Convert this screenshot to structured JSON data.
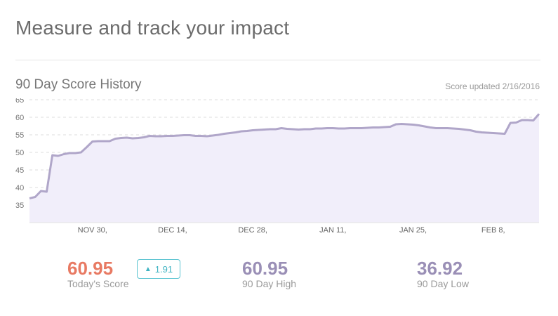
{
  "header": {
    "title": "Measure and track your impact"
  },
  "section": {
    "title": "90 Day Score History",
    "updated": "Score updated 2/16/2016"
  },
  "stats": {
    "today": {
      "value": "60.95",
      "label": "Today's Score"
    },
    "change": {
      "value": "1.91",
      "icon": "triangle-up-icon"
    },
    "high": {
      "value": "60.95",
      "label": "90 Day High"
    },
    "low": {
      "value": "36.92",
      "label": "90 Day Low"
    }
  },
  "colors": {
    "line": "#b0a6c9",
    "fill": "#f1eefa",
    "today": "#e87a63",
    "accent": "#9a8fb6",
    "badge": "#5bc4d1"
  },
  "chart_data": {
    "type": "area",
    "ylim": [
      30,
      65
    ],
    "yticks": [
      35,
      40,
      45,
      50,
      55,
      60,
      65
    ],
    "grid": true,
    "xtick_labels": [
      "NOV 30,",
      "DEC 14,",
      "DEC 28,",
      "JAN 11,",
      "JAN 25,",
      "FEB 8,"
    ],
    "xtick_days": [
      11,
      25,
      39,
      53,
      67,
      81
    ],
    "x_days": [
      0,
      1,
      2,
      3,
      4,
      5,
      6,
      7,
      8,
      9,
      10,
      11,
      12,
      13,
      14,
      15,
      16,
      17,
      18,
      19,
      20,
      21,
      22,
      23,
      24,
      25,
      26,
      27,
      28,
      29,
      30,
      31,
      32,
      33,
      34,
      35,
      36,
      37,
      38,
      39,
      40,
      41,
      42,
      43,
      44,
      45,
      46,
      47,
      48,
      49,
      50,
      51,
      52,
      53,
      54,
      55,
      56,
      57,
      58,
      59,
      60,
      61,
      62,
      63,
      64,
      65,
      66,
      67,
      68,
      69,
      70,
      71,
      72,
      73,
      74,
      75,
      76,
      77,
      78,
      79,
      80,
      81,
      82,
      83,
      84,
      85,
      86,
      87,
      88,
      89
    ],
    "values": [
      36.92,
      37.3,
      39.0,
      38.8,
      49.2,
      49.0,
      49.5,
      49.8,
      49.8,
      50.0,
      51.5,
      53.1,
      53.2,
      53.2,
      53.2,
      53.9,
      54.1,
      54.2,
      54.0,
      54.1,
      54.3,
      54.7,
      54.6,
      54.6,
      54.7,
      54.7,
      54.8,
      54.9,
      54.9,
      54.7,
      54.7,
      54.6,
      54.8,
      55.0,
      55.3,
      55.5,
      55.7,
      56.0,
      56.1,
      56.3,
      56.4,
      56.5,
      56.6,
      56.6,
      56.9,
      56.7,
      56.6,
      56.5,
      56.6,
      56.6,
      56.8,
      56.8,
      56.9,
      56.9,
      56.8,
      56.8,
      56.9,
      56.9,
      56.9,
      57.0,
      57.1,
      57.1,
      57.2,
      57.3,
      58.0,
      58.1,
      58.0,
      57.9,
      57.7,
      57.4,
      57.1,
      56.9,
      56.9,
      56.9,
      56.8,
      56.7,
      56.5,
      56.3,
      55.9,
      55.7,
      55.6,
      55.5,
      55.4,
      55.3,
      58.4,
      58.5,
      59.2,
      59.2,
      59.1,
      60.95
    ]
  }
}
